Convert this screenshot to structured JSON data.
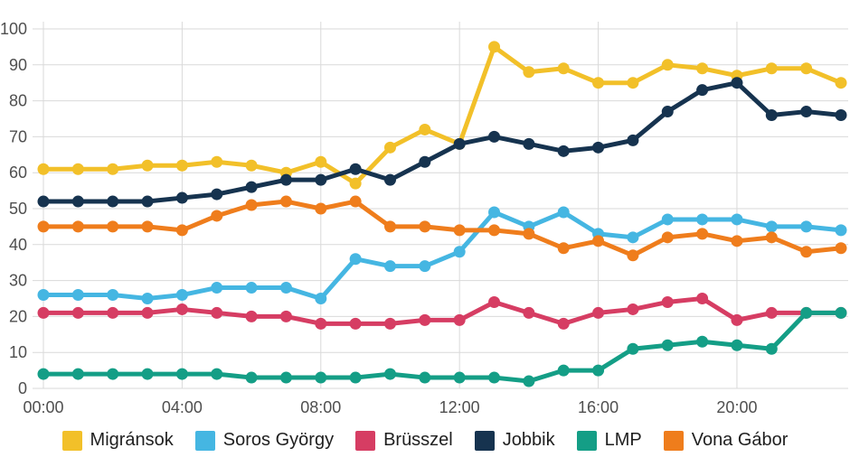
{
  "chart_data": {
    "type": "line",
    "title": "",
    "xlabel": "",
    "ylabel": "",
    "ylim": [
      0,
      100
    ],
    "grid": true,
    "grid_color": "#d9d9d9",
    "legend_position": "bottom",
    "y_tick_labels": [
      "0",
      "10",
      "20",
      "30",
      "40",
      "50",
      "60",
      "70",
      "80",
      "90",
      "100"
    ],
    "x_ticks": [
      {
        "pos": 0,
        "label": "00:00"
      },
      {
        "pos": 4,
        "label": "04:00"
      },
      {
        "pos": 8,
        "label": "08:00"
      },
      {
        "pos": 12,
        "label": "12:00"
      },
      {
        "pos": 16,
        "label": "16:00"
      },
      {
        "pos": 20,
        "label": "20:00"
      }
    ],
    "series": [
      {
        "name": "Migránsok",
        "color": "#f2c029",
        "values": [
          61,
          61,
          61,
          62,
          62,
          63,
          62,
          60,
          63,
          57,
          67,
          72,
          68,
          95,
          88,
          89,
          85,
          85,
          90,
          89,
          87,
          89,
          89,
          85
        ]
      },
      {
        "name": "Soros György",
        "color": "#45b6e2",
        "values": [
          26,
          26,
          26,
          25,
          26,
          28,
          28,
          28,
          25,
          36,
          34,
          34,
          38,
          49,
          45,
          49,
          43,
          42,
          47,
          47,
          47,
          45,
          45,
          44
        ]
      },
      {
        "name": "Brüsszel",
        "color": "#d63d63",
        "values": [
          21,
          21,
          21,
          21,
          22,
          21,
          20,
          20,
          18,
          18,
          18,
          19,
          19,
          24,
          21,
          18,
          21,
          22,
          24,
          25,
          19,
          21,
          21,
          21
        ]
      },
      {
        "name": "Jobbik",
        "color": "#16334f",
        "values": [
          52,
          52,
          52,
          52,
          53,
          54,
          56,
          58,
          58,
          61,
          58,
          63,
          68,
          70,
          68,
          66,
          67,
          69,
          77,
          83,
          85,
          76,
          77,
          76
        ]
      },
      {
        "name": "LMP",
        "color": "#149e86",
        "values": [
          4,
          4,
          4,
          4,
          4,
          4,
          3,
          3,
          3,
          3,
          4,
          3,
          3,
          3,
          2,
          5,
          5,
          11,
          12,
          13,
          12,
          11,
          21,
          21
        ]
      },
      {
        "name": "Vona Gábor",
        "color": "#ef7d1c",
        "values": [
          45,
          45,
          45,
          45,
          44,
          48,
          51,
          52,
          50,
          52,
          45,
          45,
          44,
          44,
          43,
          39,
          41,
          37,
          42,
          43,
          41,
          42,
          38,
          39
        ]
      }
    ]
  }
}
